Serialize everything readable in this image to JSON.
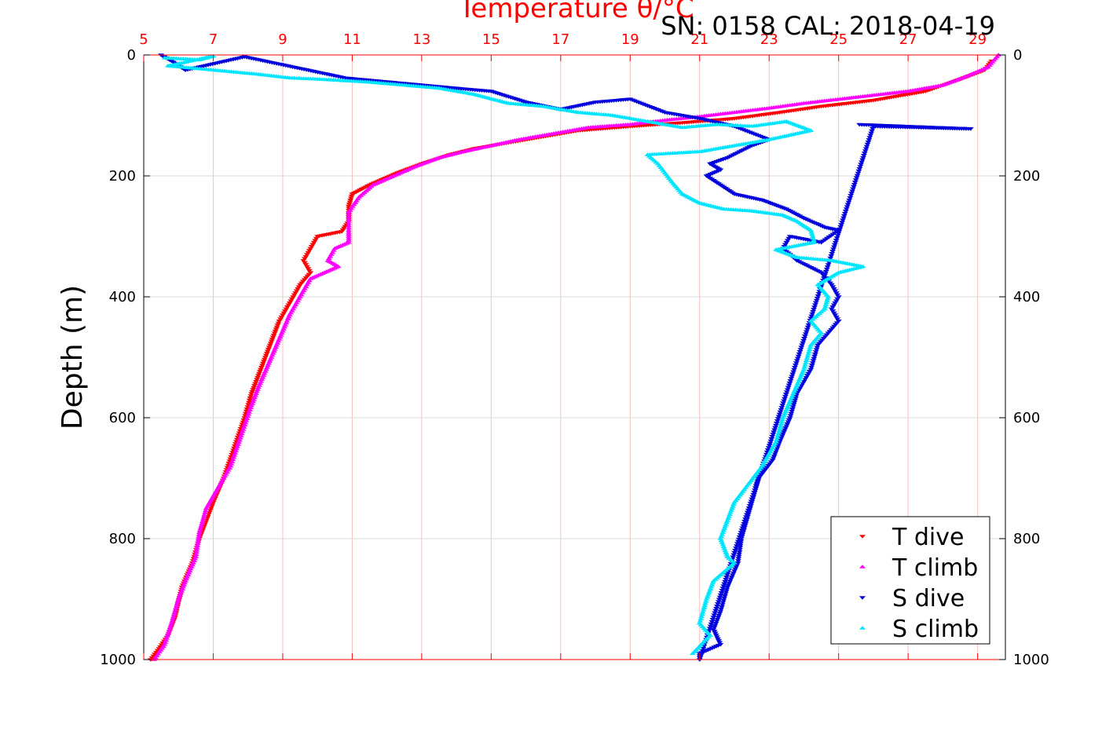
{
  "chart_data": {
    "type": "scatter",
    "title": "Temperature θ/°C",
    "subtitle": "SN: 0158  CAL: 2018-04-19",
    "ylabel": "Depth (m)",
    "xlim": [
      5,
      29.8
    ],
    "ylim": [
      0,
      1000
    ],
    "y_reversed": true,
    "x_ticks": [
      5,
      7,
      9,
      11,
      13,
      15,
      17,
      19,
      21,
      23,
      25,
      27,
      29
    ],
    "y_ticks": [
      0,
      200,
      400,
      600,
      800,
      1000
    ],
    "grid": true,
    "legend_position": "bottom-right",
    "colors": {
      "grid_x": "#f4c0c0",
      "grid_y": "#d8d8d8",
      "axis": "#ff0000",
      "frame": "#000000"
    },
    "series": [
      {
        "name": "T dive",
        "marker": "triangle-down",
        "color": "#ff0000",
        "points": [
          [
            29.4,
            10
          ],
          [
            29.2,
            25
          ],
          [
            28.5,
            40
          ],
          [
            27.5,
            60
          ],
          [
            26,
            75
          ],
          [
            24.5,
            85
          ],
          [
            23.3,
            95
          ],
          [
            22,
            105
          ],
          [
            20.5,
            112
          ],
          [
            19,
            118
          ],
          [
            17.5,
            125
          ],
          [
            16.5,
            135
          ],
          [
            15.5,
            145
          ],
          [
            14.5,
            155
          ],
          [
            13.8,
            165
          ],
          [
            13,
            180
          ],
          [
            12.3,
            195
          ],
          [
            11.9,
            205
          ],
          [
            11.5,
            215
          ],
          [
            11,
            230
          ],
          [
            10.9,
            250
          ],
          [
            10.9,
            275
          ],
          [
            10.7,
            292
          ],
          [
            10,
            300
          ],
          [
            9.8,
            320
          ],
          [
            9.6,
            340
          ],
          [
            9.8,
            360
          ],
          [
            9.5,
            380
          ],
          [
            9.2,
            410
          ],
          [
            8.9,
            440
          ],
          [
            8.7,
            470
          ],
          [
            8.5,
            500
          ],
          [
            8.3,
            530
          ],
          [
            8.1,
            560
          ],
          [
            7.9,
            600
          ],
          [
            7.6,
            650
          ],
          [
            7.3,
            700
          ],
          [
            7.0,
            740
          ],
          [
            6.8,
            770
          ],
          [
            6.6,
            800
          ],
          [
            6.4,
            840
          ],
          [
            6.1,
            880
          ],
          [
            5.9,
            930
          ],
          [
            5.7,
            960
          ],
          [
            5.4,
            985
          ],
          [
            5.2,
            1000
          ]
        ]
      },
      {
        "name": "T climb",
        "marker": "triangle-up",
        "color": "#ff00ff",
        "points": [
          [
            29.6,
            0
          ],
          [
            29.3,
            20
          ],
          [
            28.7,
            35
          ],
          [
            28,
            50
          ],
          [
            27,
            60
          ],
          [
            25.5,
            70
          ],
          [
            24,
            80
          ],
          [
            23,
            88
          ],
          [
            22,
            95
          ],
          [
            21,
            102
          ],
          [
            20,
            108
          ],
          [
            19,
            115
          ],
          [
            17.8,
            120
          ],
          [
            16.8,
            130
          ],
          [
            15.8,
            140
          ],
          [
            15,
            150
          ],
          [
            14.2,
            160
          ],
          [
            13.5,
            170
          ],
          [
            12.8,
            185
          ],
          [
            12.2,
            200
          ],
          [
            11.6,
            215
          ],
          [
            11.2,
            235
          ],
          [
            10.9,
            260
          ],
          [
            10.9,
            290
          ],
          [
            10.9,
            310
          ],
          [
            10.5,
            320
          ],
          [
            10.3,
            340
          ],
          [
            10.6,
            350
          ],
          [
            10.2,
            360
          ],
          [
            9.8,
            370
          ],
          [
            9.5,
            400
          ],
          [
            9.2,
            430
          ],
          [
            8.9,
            470
          ],
          [
            8.6,
            510
          ],
          [
            8.3,
            550
          ],
          [
            8.1,
            580
          ],
          [
            7.8,
            630
          ],
          [
            7.5,
            680
          ],
          [
            7.1,
            720
          ],
          [
            6.8,
            750
          ],
          [
            6.6,
            790
          ],
          [
            6.5,
            830
          ],
          [
            6.2,
            870
          ],
          [
            6.0,
            900
          ],
          [
            5.8,
            940
          ],
          [
            5.6,
            975
          ],
          [
            5.3,
            1000
          ]
        ]
      },
      {
        "name": "S dive",
        "marker": "triangle-down",
        "color": "#0000dd",
        "points": [
          [
            5.5,
            0
          ],
          [
            5.8,
            10
          ],
          [
            6.2,
            25
          ],
          [
            7.9,
            3
          ],
          [
            10.8,
            38
          ],
          [
            14,
            55
          ],
          [
            15,
            60
          ],
          [
            16,
            78
          ],
          [
            17,
            90
          ],
          [
            18,
            78
          ],
          [
            19,
            73
          ],
          [
            20,
            95
          ],
          [
            21,
            105
          ],
          [
            22,
            118
          ],
          [
            23,
            140
          ],
          [
            22.5,
            150
          ],
          [
            21.8,
            170
          ],
          [
            21.3,
            180
          ],
          [
            21.6,
            190
          ],
          [
            21.2,
            200
          ],
          [
            21.6,
            215
          ],
          [
            22,
            230
          ],
          [
            22.8,
            240
          ],
          [
            23.5,
            255
          ],
          [
            24,
            270
          ],
          [
            24.6,
            285
          ],
          [
            25,
            290
          ],
          [
            24.5,
            310
          ],
          [
            23.6,
            300
          ],
          [
            23.4,
            320
          ],
          [
            23.8,
            340
          ],
          [
            24.5,
            360
          ],
          [
            24.8,
            380
          ],
          [
            25,
            400
          ],
          [
            24.8,
            420
          ],
          [
            25,
            440
          ],
          [
            24.7,
            460
          ],
          [
            24.4,
            480
          ],
          [
            24.2,
            520
          ],
          [
            23.8,
            560
          ],
          [
            23.6,
            600
          ],
          [
            23.3,
            640
          ],
          [
            23.1,
            670
          ],
          [
            22.7,
            700
          ],
          [
            22.6,
            720
          ],
          [
            22.4,
            760
          ],
          [
            22.2,
            800
          ],
          [
            22.1,
            840
          ],
          [
            21.8,
            880
          ],
          [
            21.6,
            920
          ],
          [
            21.4,
            950
          ],
          [
            21.6,
            975
          ],
          [
            21.0,
            990
          ],
          [
            21.0,
            1000
          ],
          [
            26,
            118
          ],
          [
            27.5,
            120
          ],
          [
            28.8,
            122
          ],
          [
            25.6,
            115
          ]
        ]
      },
      {
        "name": "S climb",
        "marker": "triangle-up",
        "color": "#00e5ff",
        "points": [
          [
            5.6,
            5
          ],
          [
            6.6,
            8
          ],
          [
            7.0,
            2
          ],
          [
            5.7,
            18
          ],
          [
            7.0,
            25
          ],
          [
            8.3,
            32
          ],
          [
            9.2,
            38
          ],
          [
            10.0,
            40
          ],
          [
            11.5,
            45
          ],
          [
            12.5,
            50
          ],
          [
            13.5,
            55
          ],
          [
            14.5,
            65
          ],
          [
            15.5,
            80
          ],
          [
            16.5,
            85
          ],
          [
            17.5,
            95
          ],
          [
            18.5,
            100
          ],
          [
            19.5,
            110
          ],
          [
            20.5,
            120
          ],
          [
            21.5,
            115
          ],
          [
            22.5,
            118
          ],
          [
            23.5,
            110
          ],
          [
            24.2,
            125
          ],
          [
            23,
            140
          ],
          [
            22,
            150
          ],
          [
            21,
            160
          ],
          [
            19.5,
            165
          ],
          [
            19.8,
            180
          ],
          [
            20,
            195
          ],
          [
            20.2,
            210
          ],
          [
            20.5,
            230
          ],
          [
            21,
            245
          ],
          [
            21.7,
            255
          ],
          [
            22.5,
            258
          ],
          [
            23.4,
            265
          ],
          [
            23.8,
            275
          ],
          [
            24.2,
            290
          ],
          [
            24.3,
            310
          ],
          [
            23.2,
            322
          ],
          [
            23.8,
            335
          ],
          [
            24.8,
            340
          ],
          [
            25.7,
            350
          ],
          [
            25,
            360
          ],
          [
            24.4,
            380
          ],
          [
            24.7,
            400
          ],
          [
            24.6,
            420
          ],
          [
            24.2,
            440
          ],
          [
            24.5,
            460
          ],
          [
            24.2,
            480
          ],
          [
            24,
            520
          ],
          [
            23.7,
            560
          ],
          [
            23.4,
            600
          ],
          [
            23.2,
            640
          ],
          [
            22.8,
            680
          ],
          [
            22.4,
            710
          ],
          [
            22.0,
            740
          ],
          [
            21.8,
            770
          ],
          [
            21.6,
            800
          ],
          [
            21.8,
            830
          ],
          [
            22.0,
            840
          ],
          [
            21.4,
            870
          ],
          [
            21.2,
            900
          ],
          [
            21.0,
            940
          ],
          [
            21.3,
            960
          ],
          [
            20.8,
            990
          ]
        ]
      }
    ]
  }
}
